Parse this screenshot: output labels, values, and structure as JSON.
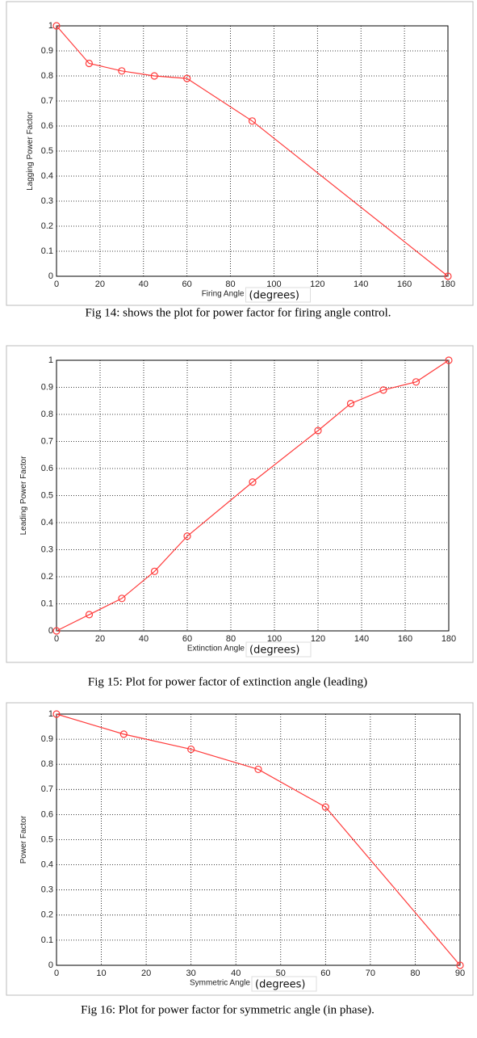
{
  "chart_data": [
    {
      "type": "line",
      "xlabel": "Firing Angle",
      "xlabel_note": "(degrees)",
      "ylabel": "Lagging Power Factor",
      "x": [
        0,
        15,
        30,
        45,
        60,
        90,
        180
      ],
      "values": [
        1,
        0.85,
        0.82,
        0.8,
        0.79,
        0.62,
        0
      ],
      "color": "#ff3b3b",
      "xlim": [
        0,
        180
      ],
      "ylim": [
        0,
        1
      ],
      "xticks": [
        0,
        20,
        40,
        60,
        80,
        100,
        120,
        140,
        160,
        180
      ],
      "yticks": [
        0,
        0.1,
        0.2,
        0.3,
        0.4,
        0.5,
        0.6,
        0.7,
        0.8,
        0.9,
        1
      ],
      "grid": true,
      "caption": "Fig 14: shows the plot for power factor for firing angle control."
    },
    {
      "type": "line",
      "xlabel": "Extinction Angle",
      "xlabel_note": "(degrees)",
      "ylabel": "Leading Power Factor",
      "x": [
        0,
        15,
        30,
        45,
        60,
        90,
        120,
        135,
        150,
        165,
        180
      ],
      "values": [
        0,
        0.06,
        0.12,
        0.22,
        0.35,
        0.55,
        0.74,
        0.84,
        0.89,
        0.92,
        1
      ],
      "color": "#ff3b3b",
      "xlim": [
        0,
        180
      ],
      "ylim": [
        0,
        1
      ],
      "xticks": [
        0,
        20,
        40,
        60,
        80,
        100,
        120,
        140,
        160,
        180
      ],
      "yticks": [
        0,
        0.1,
        0.2,
        0.3,
        0.4,
        0.5,
        0.6,
        0.7,
        0.8,
        0.9,
        1
      ],
      "grid": true,
      "caption": "Fig 15: Plot for power factor of extinction angle (leading)"
    },
    {
      "type": "line",
      "xlabel": "Symmetric Angle",
      "xlabel_note": "(degrees)",
      "ylabel": "Power Factor",
      "x": [
        0,
        15,
        30,
        45,
        60,
        90
      ],
      "values": [
        1,
        0.92,
        0.86,
        0.78,
        0.63,
        0
      ],
      "color": "#ff3b3b",
      "xlim": [
        0,
        90
      ],
      "ylim": [
        0,
        1
      ],
      "xticks": [
        0,
        10,
        20,
        30,
        40,
        50,
        60,
        70,
        80,
        90
      ],
      "yticks": [
        0,
        0.1,
        0.2,
        0.3,
        0.4,
        0.5,
        0.6,
        0.7,
        0.8,
        0.9,
        1
      ],
      "grid": true,
      "caption": "Fig 16: Plot for power factor for symmetric angle (in phase)."
    }
  ]
}
